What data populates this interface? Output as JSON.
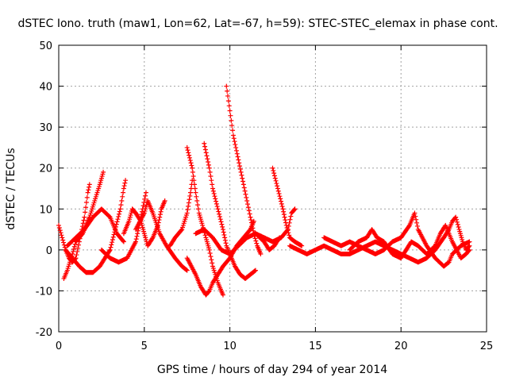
{
  "chart_data": {
    "type": "scatter",
    "title": "dSTEC Iono. truth (maw1, Lon=62, Lat=-67, h=59): STEC-STEC_elemax in phase cont.",
    "xlabel": "GPS time / hours of day 294 of year 2014",
    "ylabel": "dSTEC  / TECUs",
    "xlim": [
      0,
      25
    ],
    "ylim": [
      -20,
      50
    ],
    "xticks": [
      0,
      5,
      10,
      15,
      20,
      25
    ],
    "yticks": [
      -20,
      -10,
      0,
      10,
      20,
      30,
      40,
      50
    ],
    "grid": true,
    "marker": "+",
    "color": "#ff0000",
    "series": [
      {
        "points": [
          [
            0.0,
            6
          ],
          [
            0.2,
            3
          ],
          [
            0.4,
            0
          ],
          [
            0.6,
            -2
          ],
          [
            0.8,
            -3
          ],
          [
            1.0,
            -2
          ],
          [
            1.2,
            2
          ],
          [
            1.5,
            8
          ],
          [
            1.7,
            14
          ],
          [
            1.8,
            16
          ]
        ]
      },
      {
        "points": [
          [
            0.3,
            -7
          ],
          [
            0.5,
            -5
          ],
          [
            0.8,
            -1
          ],
          [
            1.0,
            2
          ],
          [
            1.4,
            4
          ],
          [
            1.8,
            8
          ],
          [
            2.1,
            12
          ],
          [
            2.4,
            16
          ],
          [
            2.6,
            19
          ]
        ]
      },
      {
        "points": [
          [
            0.4,
            0
          ],
          [
            0.8,
            -2
          ],
          [
            1.2,
            -4
          ],
          [
            1.6,
            -5.5
          ],
          [
            2.0,
            -5.5
          ],
          [
            2.4,
            -4
          ],
          [
            2.7,
            -2
          ],
          [
            3.0,
            0
          ],
          [
            3.3,
            5
          ],
          [
            3.6,
            10
          ],
          [
            3.8,
            15
          ],
          [
            3.9,
            17
          ]
        ]
      },
      {
        "points": [
          [
            0.5,
            1
          ],
          [
            1.0,
            3
          ],
          [
            1.5,
            5
          ],
          [
            2.0,
            8
          ],
          [
            2.5,
            10
          ],
          [
            3.0,
            8
          ],
          [
            3.4,
            4
          ],
          [
            3.8,
            2
          ]
        ]
      },
      {
        "points": [
          [
            2.5,
            0
          ],
          [
            3.0,
            -2
          ],
          [
            3.5,
            -3
          ],
          [
            4.0,
            -2
          ],
          [
            4.5,
            2
          ],
          [
            4.7,
            6
          ],
          [
            4.9,
            10
          ],
          [
            5.1,
            14
          ]
        ]
      },
      {
        "points": [
          [
            3.8,
            4
          ],
          [
            4.1,
            7
          ],
          [
            4.3,
            10
          ],
          [
            4.5,
            9
          ],
          [
            4.8,
            7
          ],
          [
            5.0,
            4
          ],
          [
            5.2,
            1
          ],
          [
            5.5,
            3
          ],
          [
            5.8,
            6
          ],
          [
            6.0,
            10
          ],
          [
            6.2,
            12
          ]
        ]
      },
      {
        "points": [
          [
            4.5,
            5
          ],
          [
            5.0,
            9
          ],
          [
            5.2,
            12
          ],
          [
            5.5,
            9
          ],
          [
            5.9,
            4
          ],
          [
            6.3,
            1
          ],
          [
            6.8,
            -2
          ],
          [
            7.2,
            -4
          ],
          [
            7.5,
            -5
          ]
        ]
      },
      {
        "points": [
          [
            6.5,
            1
          ],
          [
            6.8,
            3
          ],
          [
            7.2,
            5
          ],
          [
            7.5,
            9
          ],
          [
            7.7,
            14
          ],
          [
            7.8,
            17
          ]
        ]
      },
      {
        "points": [
          [
            7.5,
            25
          ],
          [
            7.8,
            20
          ],
          [
            8.0,
            14
          ],
          [
            8.2,
            9
          ],
          [
            8.4,
            6
          ],
          [
            8.6,
            3
          ],
          [
            8.8,
            0
          ],
          [
            9.0,
            -4
          ],
          [
            9.3,
            -8
          ],
          [
            9.5,
            -10
          ],
          [
            9.6,
            -11
          ]
        ]
      },
      {
        "points": [
          [
            7.5,
            -2
          ],
          [
            8.0,
            -6
          ],
          [
            8.3,
            -9
          ],
          [
            8.6,
            -11
          ],
          [
            8.8,
            -10
          ],
          [
            9.0,
            -8
          ],
          [
            9.3,
            -6
          ],
          [
            9.6,
            -4
          ],
          [
            10.0,
            -2
          ],
          [
            10.4,
            1
          ],
          [
            10.8,
            3
          ],
          [
            11.2,
            5
          ],
          [
            11.4,
            7
          ]
        ]
      },
      {
        "points": [
          [
            8.5,
            26
          ],
          [
            8.8,
            20
          ],
          [
            9.0,
            15
          ],
          [
            9.3,
            10
          ],
          [
            9.6,
            5
          ],
          [
            9.8,
            1
          ],
          [
            10.0,
            -1
          ],
          [
            10.3,
            -4
          ],
          [
            10.6,
            -6
          ],
          [
            10.9,
            -7
          ],
          [
            11.2,
            -6
          ],
          [
            11.5,
            -5
          ]
        ]
      },
      {
        "points": [
          [
            9.8,
            40
          ],
          [
            10.0,
            34
          ],
          [
            10.2,
            28
          ],
          [
            10.5,
            22
          ],
          [
            10.8,
            16
          ],
          [
            11.0,
            12
          ],
          [
            11.2,
            8
          ],
          [
            11.4,
            4
          ],
          [
            11.6,
            1
          ],
          [
            11.8,
            -1
          ]
        ]
      },
      {
        "points": [
          [
            8.0,
            4
          ],
          [
            8.5,
            5
          ],
          [
            9.0,
            3
          ],
          [
            9.5,
            0
          ],
          [
            10.0,
            -1
          ],
          [
            10.5,
            1
          ],
          [
            11.0,
            3
          ],
          [
            11.5,
            4
          ],
          [
            12.0,
            3
          ],
          [
            12.5,
            2
          ],
          [
            13.0,
            3
          ],
          [
            13.4,
            5
          ],
          [
            13.6,
            9
          ],
          [
            13.8,
            10
          ]
        ]
      },
      {
        "points": [
          [
            12.5,
            20
          ],
          [
            12.8,
            15
          ],
          [
            13.1,
            10
          ],
          [
            13.3,
            6
          ],
          [
            13.5,
            3
          ],
          [
            13.8,
            2
          ],
          [
            14.2,
            1
          ]
        ]
      },
      {
        "points": [
          [
            11.5,
            4
          ],
          [
            12.0,
            2
          ],
          [
            12.3,
            0
          ],
          [
            12.6,
            1
          ],
          [
            12.9,
            3
          ]
        ]
      },
      {
        "points": [
          [
            13.5,
            1
          ],
          [
            14.0,
            0
          ],
          [
            14.5,
            -1
          ],
          [
            15.0,
            0
          ],
          [
            15.5,
            1
          ],
          [
            16.0,
            0
          ],
          [
            16.5,
            -1
          ],
          [
            17.0,
            -1
          ],
          [
            17.5,
            0
          ],
          [
            18.0,
            1
          ],
          [
            18.5,
            2
          ],
          [
            19.0,
            1
          ],
          [
            19.5,
            0
          ],
          [
            20.0,
            -1
          ],
          [
            20.5,
            -2
          ],
          [
            21.0,
            -3
          ],
          [
            21.5,
            -2
          ],
          [
            22.0,
            0
          ],
          [
            22.5,
            3
          ],
          [
            22.8,
            5
          ],
          [
            23.0,
            7
          ],
          [
            23.2,
            8
          ],
          [
            23.4,
            5
          ],
          [
            23.6,
            2
          ],
          [
            23.8,
            0
          ],
          [
            24.0,
            1
          ]
        ]
      },
      {
        "points": [
          [
            15.5,
            3
          ],
          [
            16.0,
            2
          ],
          [
            16.5,
            1
          ],
          [
            17.0,
            2
          ],
          [
            17.5,
            1
          ],
          [
            18.0,
            0
          ],
          [
            18.5,
            -1
          ],
          [
            19.0,
            0
          ],
          [
            19.5,
            2
          ],
          [
            20.0,
            3
          ],
          [
            20.5,
            6
          ],
          [
            20.8,
            9
          ],
          [
            21.0,
            5
          ],
          [
            21.5,
            1
          ],
          [
            22.0,
            -2
          ],
          [
            22.5,
            -4
          ],
          [
            22.8,
            -3
          ],
          [
            23.0,
            -1
          ],
          [
            23.5,
            1
          ],
          [
            24.0,
            2
          ]
        ]
      },
      {
        "points": [
          [
            17.0,
            0
          ],
          [
            17.5,
            2
          ],
          [
            18.0,
            3
          ],
          [
            18.3,
            5
          ],
          [
            18.6,
            3
          ],
          [
            19.0,
            2
          ],
          [
            19.5,
            -1
          ],
          [
            20.0,
            -2
          ],
          [
            20.3,
            0
          ],
          [
            20.6,
            2
          ],
          [
            21.0,
            1
          ],
          [
            21.5,
            -1
          ],
          [
            22.0,
            1
          ],
          [
            22.3,
            4
          ],
          [
            22.6,
            6
          ],
          [
            23.0,
            2
          ],
          [
            23.5,
            -2
          ],
          [
            23.8,
            -1
          ],
          [
            24.0,
            0
          ]
        ]
      }
    ]
  }
}
